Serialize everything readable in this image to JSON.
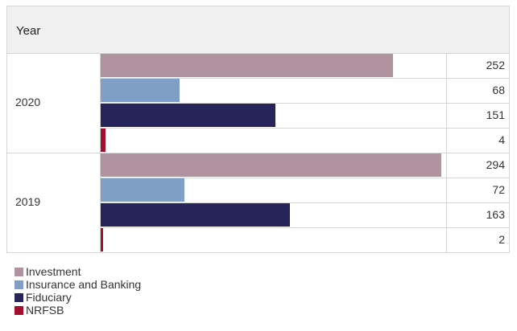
{
  "chart_data": {
    "type": "bar",
    "orientation": "horizontal",
    "header": "Year",
    "categories": [
      "2020",
      "2019"
    ],
    "series": [
      {
        "name": "Investment",
        "color": "#b0939f",
        "values": [
          252,
          294
        ]
      },
      {
        "name": "Insurance and Banking",
        "color": "#809fc6",
        "values": [
          68,
          72
        ]
      },
      {
        "name": "Fiduciary",
        "color": "#27245a",
        "values": [
          151,
          163
        ]
      },
      {
        "name": "NRFSB",
        "color": "#a3102f",
        "values": [
          4,
          2
        ]
      }
    ],
    "xlim": [
      0,
      294
    ],
    "grid": false,
    "legend": "bottom-left"
  }
}
